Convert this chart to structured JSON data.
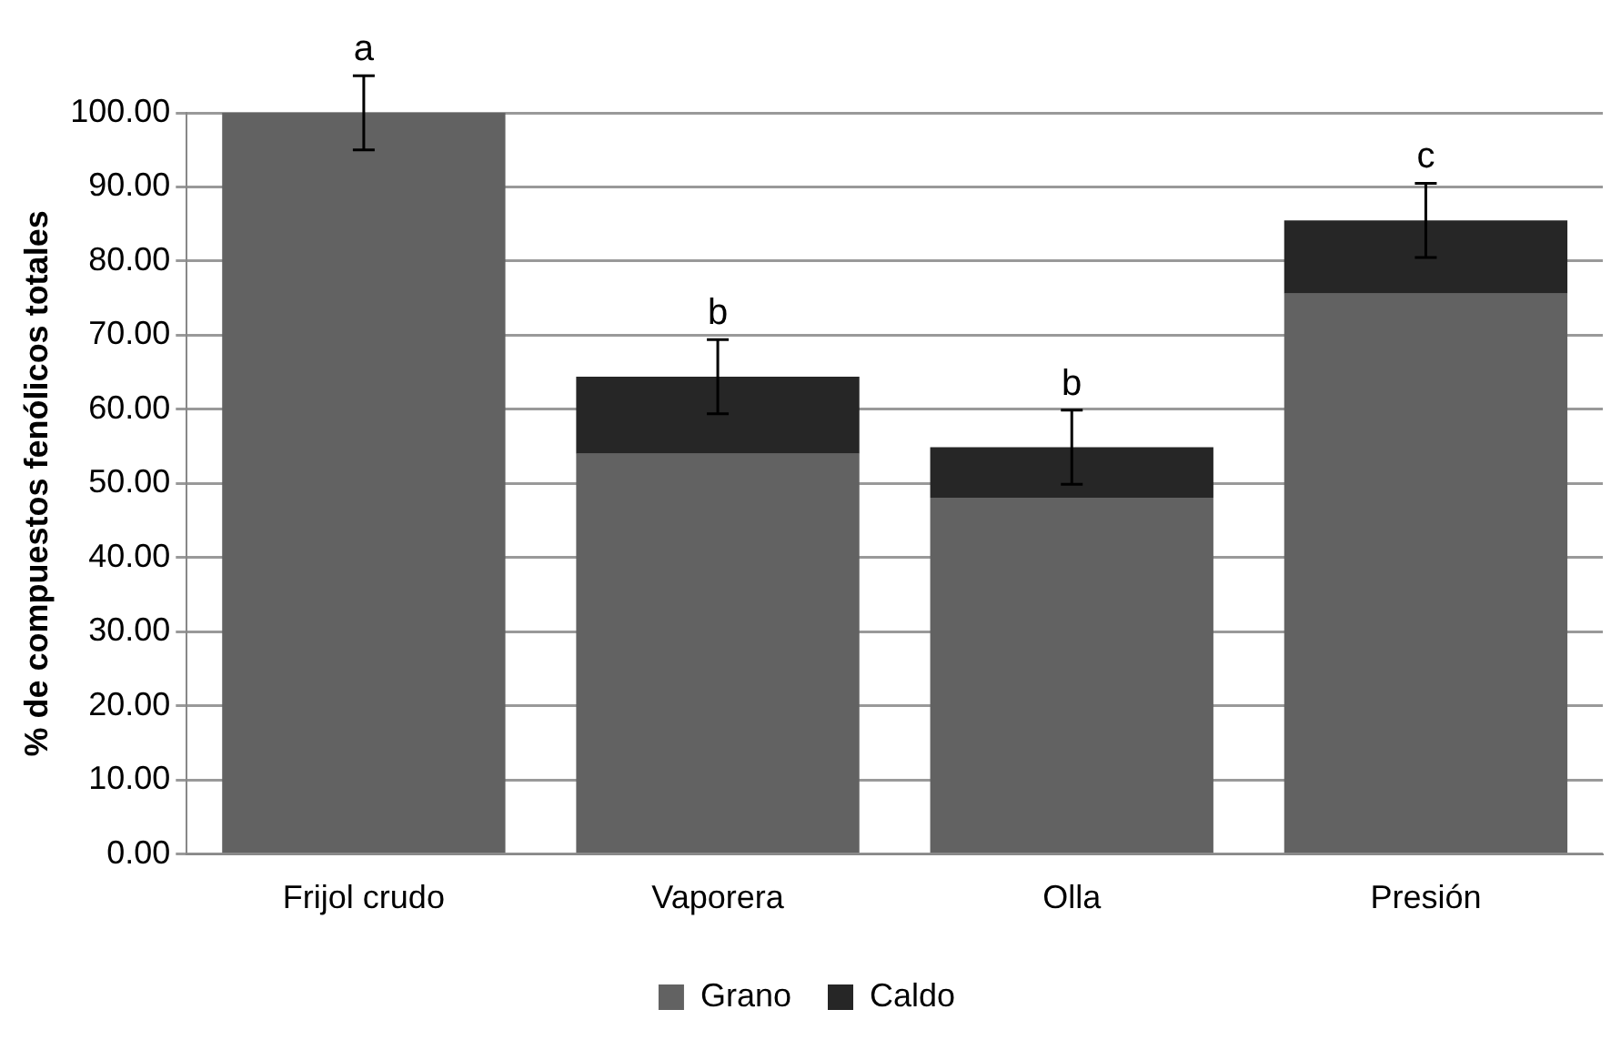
{
  "chart_data": {
    "type": "bar",
    "ylabel": "% de compuestos fenólicos totales",
    "categories": [
      "Frijol crudo",
      "Vaporera",
      "Olla",
      "Presión"
    ],
    "stacked": true,
    "series": [
      {
        "name": "Grano",
        "color": "#626262",
        "values": [
          100,
          54.0,
          48.1,
          75.6
        ]
      },
      {
        "name": "Caldo",
        "color": "#262626",
        "values": [
          0,
          10.4,
          6.8,
          9.9
        ],
        "errors": [
          5,
          5,
          5,
          5
        ]
      }
    ],
    "ylim": [
      0,
      100
    ],
    "yticks": [
      {
        "value": 0,
        "label": "0.00"
      },
      {
        "value": 10,
        "label": "10.00"
      },
      {
        "value": 20,
        "label": "20.00"
      },
      {
        "value": 30,
        "label": "30.00"
      },
      {
        "value": 40,
        "label": "40.00"
      },
      {
        "value": 50,
        "label": "50.00"
      },
      {
        "value": 60,
        "label": "60.00"
      },
      {
        "value": 70,
        "label": "70.00"
      },
      {
        "value": 80,
        "label": "80.00"
      },
      {
        "value": 90,
        "label": "90.00"
      },
      {
        "value": 100,
        "label": "100.00"
      }
    ],
    "annotations": [
      {
        "text": "a",
        "x": "Frijol crudo",
        "y": 105
      },
      {
        "text": "b",
        "x": "Vaporera",
        "y": 69.4
      },
      {
        "text": "b",
        "x": "Olla",
        "y": 59.9
      },
      {
        "text": "c",
        "x": "Presión",
        "y": 90.5
      }
    ],
    "grid": "y",
    "legend": "bottom"
  }
}
